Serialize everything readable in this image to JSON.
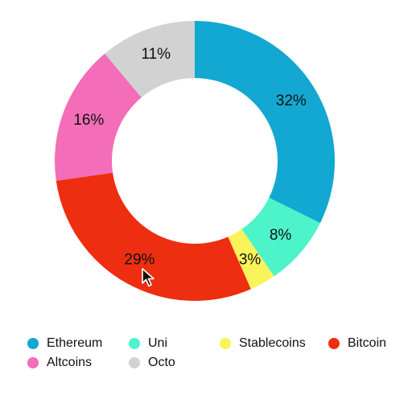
{
  "chart_data": {
    "type": "pie",
    "variant": "donut",
    "slices": [
      {
        "label": "Ethereum",
        "value": 32,
        "display": "32%",
        "color": "#13A8D2"
      },
      {
        "label": "Uni",
        "value": 8,
        "display": "8%",
        "color": "#4DF3C9"
      },
      {
        "label": "Stablecoins",
        "value": 3,
        "display": "3%",
        "color": "#FBF35A"
      },
      {
        "label": "Bitcoin",
        "value": 29,
        "display": "29%",
        "color": "#EE2E11"
      },
      {
        "label": "Altcoins",
        "value": 16,
        "display": "16%",
        "color": "#F36DB8"
      },
      {
        "label": "Octo",
        "value": 11,
        "display": "11%",
        "color": "#D2D2D2"
      }
    ],
    "start": "top",
    "direction": "clockwise",
    "legend_position": "bottom-left"
  },
  "legend": {
    "rows": [
      [
        {
          "label": "Ethereum",
          "color": "#13A8D2"
        },
        {
          "label": "Uni",
          "color": "#4DF3C9"
        },
        {
          "label": "Stablecoins",
          "color": "#FBF35A"
        },
        {
          "label": "Bitcoin",
          "color": "#EE2E11"
        }
      ],
      [
        {
          "label": "Altcoins",
          "color": "#F36DB8"
        },
        {
          "label": "Octo",
          "color": "#D2D2D2"
        }
      ]
    ]
  },
  "overlay": {
    "cursor_icon": "mouse-pointer-icon"
  }
}
